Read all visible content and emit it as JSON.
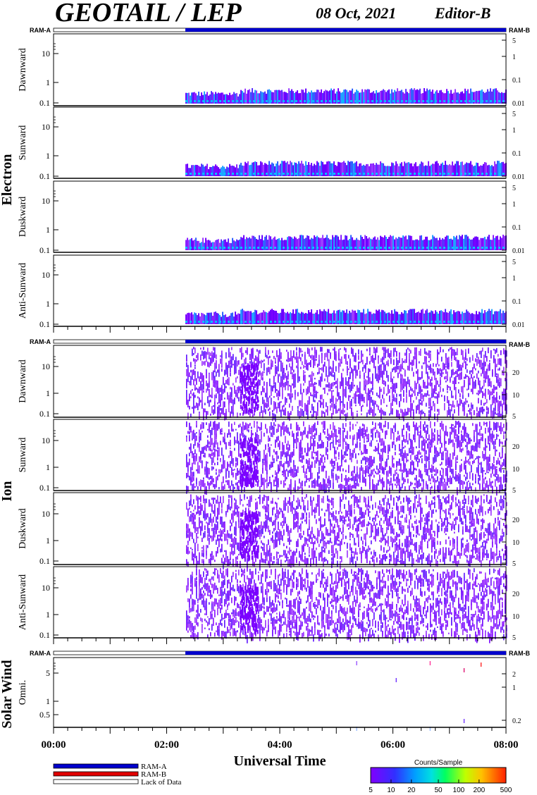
{
  "header": {
    "title": "GEOTAIL / LEP",
    "date": "08 Oct, 2021",
    "editor": "Editor-B"
  },
  "chart_data": {
    "type": "heatmap",
    "x_axis": {
      "label": "Universal Time",
      "range_hours": [
        0,
        8
      ],
      "major_ticks": [
        "00:00",
        "02:00",
        "04:00",
        "06:00",
        "08:00"
      ],
      "minor_tick_step_hours": 0.25
    },
    "data_start_hours": 2.33,
    "ram_labels": {
      "a": "RAM-A",
      "b": "RAM-B"
    },
    "groups": [
      {
        "name": "Electron",
        "panels": [
          {
            "ylabel": "Dawnward",
            "yticks": [
              "10",
              "1",
              "0.1"
            ],
            "right_ticks": [
              "5",
              "1",
              "0.1",
              "0.01"
            ]
          },
          {
            "ylabel": "Sunward",
            "yticks": [
              "10",
              "1",
              "0.1"
            ],
            "right_ticks": [
              "5",
              "1",
              "0.1",
              "0.01"
            ]
          },
          {
            "ylabel": "Duskward",
            "yticks": [
              "10",
              "1",
              "0.1"
            ],
            "right_ticks": [
              "5",
              "1",
              "0.1",
              "0.01"
            ]
          },
          {
            "ylabel": "Anti-Sunward",
            "yticks": [
              "10",
              "1",
              "0.1"
            ],
            "right_ticks": [
              "5",
              "1",
              "0.1",
              "0.01"
            ]
          }
        ]
      },
      {
        "name": "Ion",
        "panels": [
          {
            "ylabel": "Dawnward",
            "yticks": [
              "10",
              "1",
              "0.1"
            ],
            "right_ticks": [
              "20",
              "10",
              "5"
            ]
          },
          {
            "ylabel": "Sunward",
            "yticks": [
              "10",
              "1",
              "0.1"
            ],
            "right_ticks": [
              "20",
              "10",
              "5"
            ]
          },
          {
            "ylabel": "Duskward",
            "yticks": [
              "10",
              "1",
              "0.1"
            ],
            "right_ticks": [
              "20",
              "10",
              "5"
            ]
          },
          {
            "ylabel": "Anti-Sunward",
            "yticks": [
              "10",
              "1",
              "0.1"
            ],
            "right_ticks": [
              "20",
              "10",
              "5"
            ]
          }
        ]
      },
      {
        "name": "Solar Wind",
        "panels": [
          {
            "ylabel": "Omni.",
            "yticks": [
              "5",
              "1",
              "0.5"
            ],
            "right_ticks": [
              "2",
              "1",
              "0.2"
            ]
          }
        ]
      }
    ],
    "legend": {
      "items": [
        {
          "label": "RAM-A",
          "color": "#0000cc"
        },
        {
          "label": "RAM-B",
          "color": "#e00000"
        },
        {
          "label": "Lack of Data",
          "color": "#ffffff"
        }
      ]
    },
    "colorbar": {
      "title": "Counts/Sample",
      "ticks": [
        "5",
        "10",
        "20",
        "50",
        "100",
        "200",
        "500"
      ],
      "scale": "log",
      "range": [
        5,
        500
      ]
    }
  }
}
